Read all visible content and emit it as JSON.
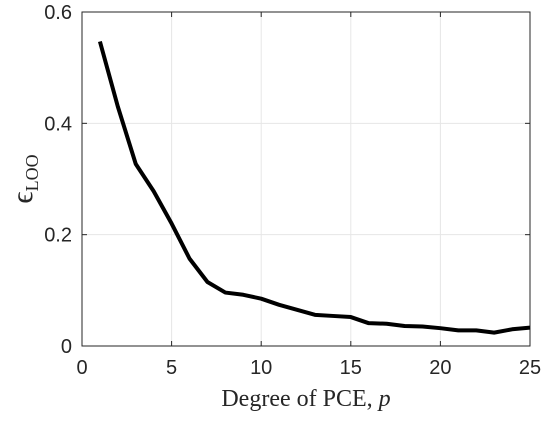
{
  "chart_data": {
    "type": "line",
    "title": "",
    "xlabel": "Degree of PCE, ",
    "xlabel_var": "p",
    "ylabel_symbol": "ϵ",
    "ylabel_sub": "LOO",
    "xlim": [
      0,
      25
    ],
    "ylim": [
      0,
      0.6
    ],
    "xticks": [
      0,
      5,
      10,
      15,
      20,
      25
    ],
    "yticks": [
      0,
      0.2,
      0.4,
      0.6
    ],
    "xtick_labels": [
      "0",
      "5",
      "10",
      "15",
      "20",
      "25"
    ],
    "ytick_labels": [
      "0",
      "0.2",
      "0.4",
      "0.6"
    ],
    "grid": true,
    "line_color": "#000000",
    "series": [
      {
        "x": [
          1,
          2,
          3,
          4,
          5,
          6,
          7,
          8,
          9,
          10,
          11,
          12,
          13,
          14,
          15,
          16,
          17,
          18,
          19,
          20,
          21,
          22,
          23,
          24,
          25
        ],
        "values": [
          0.547,
          0.43,
          0.327,
          0.278,
          0.22,
          0.157,
          0.115,
          0.096,
          0.092,
          0.085,
          0.074,
          0.065,
          0.056,
          0.054,
          0.052,
          0.041,
          0.04,
          0.036,
          0.035,
          0.032,
          0.028,
          0.028,
          0.024,
          0.03,
          0.033
        ]
      }
    ]
  }
}
